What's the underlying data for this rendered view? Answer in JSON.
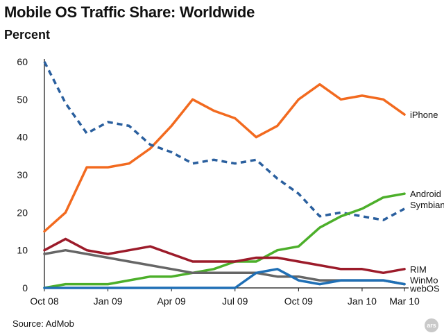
{
  "title": "Mobile OS Traffic Share: Worldwide",
  "subtitle": "Percent",
  "source": "Source: AdMob",
  "logo_text": "ars",
  "chart_data": {
    "type": "line",
    "title": "Mobile OS Traffic Share: Worldwide",
    "ylabel": "Percent",
    "xlabel": "",
    "ylim": [
      0,
      60
    ],
    "y_ticks": [
      0,
      10,
      20,
      30,
      40,
      50,
      60
    ],
    "x_count": 18,
    "x_ticks": [
      {
        "index": 0,
        "label": "Oct 08"
      },
      {
        "index": 3,
        "label": "Jan 09"
      },
      {
        "index": 6,
        "label": "Apr 09"
      },
      {
        "index": 9,
        "label": "Jul 09"
      },
      {
        "index": 12,
        "label": "Oct 09"
      },
      {
        "index": 15,
        "label": "Jan 10"
      },
      {
        "index": 17,
        "label": "Mar 10"
      }
    ],
    "grid": false,
    "legend": "labels at line ends, right",
    "series": [
      {
        "name": "iPhone",
        "color": "#f26a1f",
        "dashed": false,
        "values": [
          15,
          20,
          32,
          32,
          33,
          37,
          43,
          50,
          47,
          45,
          40,
          43,
          50,
          54,
          50,
          51,
          50,
          46
        ]
      },
      {
        "name": "Symbian",
        "color": "#2a5f9e",
        "dashed": true,
        "values": [
          60,
          49,
          41,
          44,
          43,
          38,
          36,
          33,
          34,
          33,
          34,
          29,
          25,
          19,
          20,
          19,
          18,
          21
        ]
      },
      {
        "name": "Android",
        "color": "#4caf2a",
        "dashed": false,
        "values": [
          0,
          1,
          1,
          1,
          2,
          3,
          3,
          4,
          5,
          7,
          7,
          10,
          11,
          16,
          19,
          21,
          24,
          25
        ]
      },
      {
        "name": "RIM",
        "color": "#9c1b2a",
        "dashed": false,
        "values": [
          10,
          13,
          10,
          9,
          10,
          11,
          9,
          7,
          7,
          7,
          8,
          8,
          7,
          6,
          5,
          5,
          4,
          5
        ]
      },
      {
        "name": "WinMo",
        "color": "#666666",
        "dashed": false,
        "values": [
          9,
          10,
          9,
          8,
          7,
          6,
          5,
          4,
          4,
          4,
          4,
          3,
          3,
          2,
          2,
          2,
          2,
          1
        ]
      },
      {
        "name": "webOS",
        "color": "#1f6fb5",
        "dashed": false,
        "values": [
          0,
          0,
          0,
          0,
          0,
          0,
          0,
          0,
          0,
          0,
          4,
          5,
          2,
          1,
          2,
          2,
          2,
          1
        ]
      }
    ]
  }
}
